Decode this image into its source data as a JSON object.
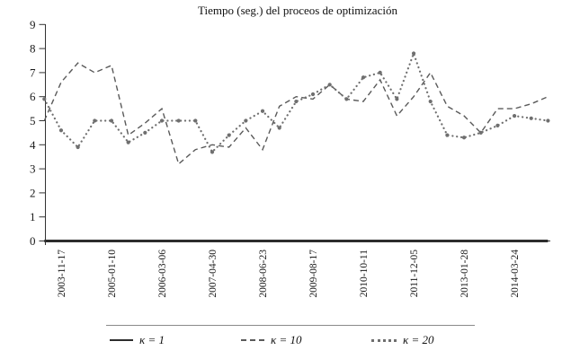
{
  "title": "Tiempo (seg.) del proceos de optimización",
  "chart_data": {
    "type": "line",
    "title": "Tiempo (seg.) del proceos de optimización",
    "xlabel": "",
    "ylabel": "",
    "grid": false,
    "legend_position": "bottom",
    "y_axis": {
      "min": 0,
      "max": 9,
      "ticks": [
        0,
        1,
        2,
        3,
        4,
        5,
        6,
        7,
        8,
        9
      ]
    },
    "x_tick_labels": [
      "2003-11-17",
      "2005-01-10",
      "2006-03-06",
      "2007-04-30",
      "2008-06-23",
      "2009-08-17",
      "2010-10-11",
      "2011-12-05",
      "2013-01-28",
      "2014-03-24"
    ],
    "first_label_point_index": 1,
    "points_per_label_gap": 3,
    "series": [
      {
        "name": "k1",
        "label": "κ = 1",
        "style": "solid",
        "color": "#2d2d2d",
        "values": [
          0,
          0,
          0,
          0,
          0,
          0,
          0,
          0,
          0,
          0,
          0,
          0,
          0,
          0,
          0,
          0,
          0,
          0,
          0,
          0,
          0,
          0,
          0,
          0,
          0,
          0,
          0,
          0,
          0,
          0,
          0
        ]
      },
      {
        "name": "k10",
        "label": "κ = 10",
        "style": "dashed",
        "color": "#5a5a5a",
        "values": [
          5.0,
          6.6,
          7.4,
          7.0,
          7.3,
          4.4,
          4.9,
          5.5,
          3.2,
          3.8,
          4.0,
          3.9,
          4.7,
          3.8,
          5.6,
          6.0,
          5.9,
          6.5,
          5.9,
          5.8,
          6.7,
          5.2,
          6.0,
          7.0,
          5.6,
          5.2,
          4.5,
          5.5,
          5.5,
          5.7,
          6.0
        ]
      },
      {
        "name": "k20",
        "label": "κ = 20",
        "style": "dotted",
        "color": "#6f6f6f",
        "values": [
          5.9,
          4.6,
          3.9,
          5.0,
          5.0,
          4.1,
          4.5,
          5.0,
          5.0,
          5.0,
          3.7,
          4.4,
          5.0,
          5.4,
          4.7,
          5.8,
          6.1,
          6.5,
          5.9,
          6.8,
          7.0,
          5.9,
          7.8,
          5.8,
          4.4,
          4.3,
          4.5,
          4.8,
          5.2,
          5.1,
          5.0
        ]
      }
    ]
  },
  "colors": {
    "axis": "#333333",
    "text": "#1a1a1a",
    "legend_rule": "#8a8a8a"
  }
}
